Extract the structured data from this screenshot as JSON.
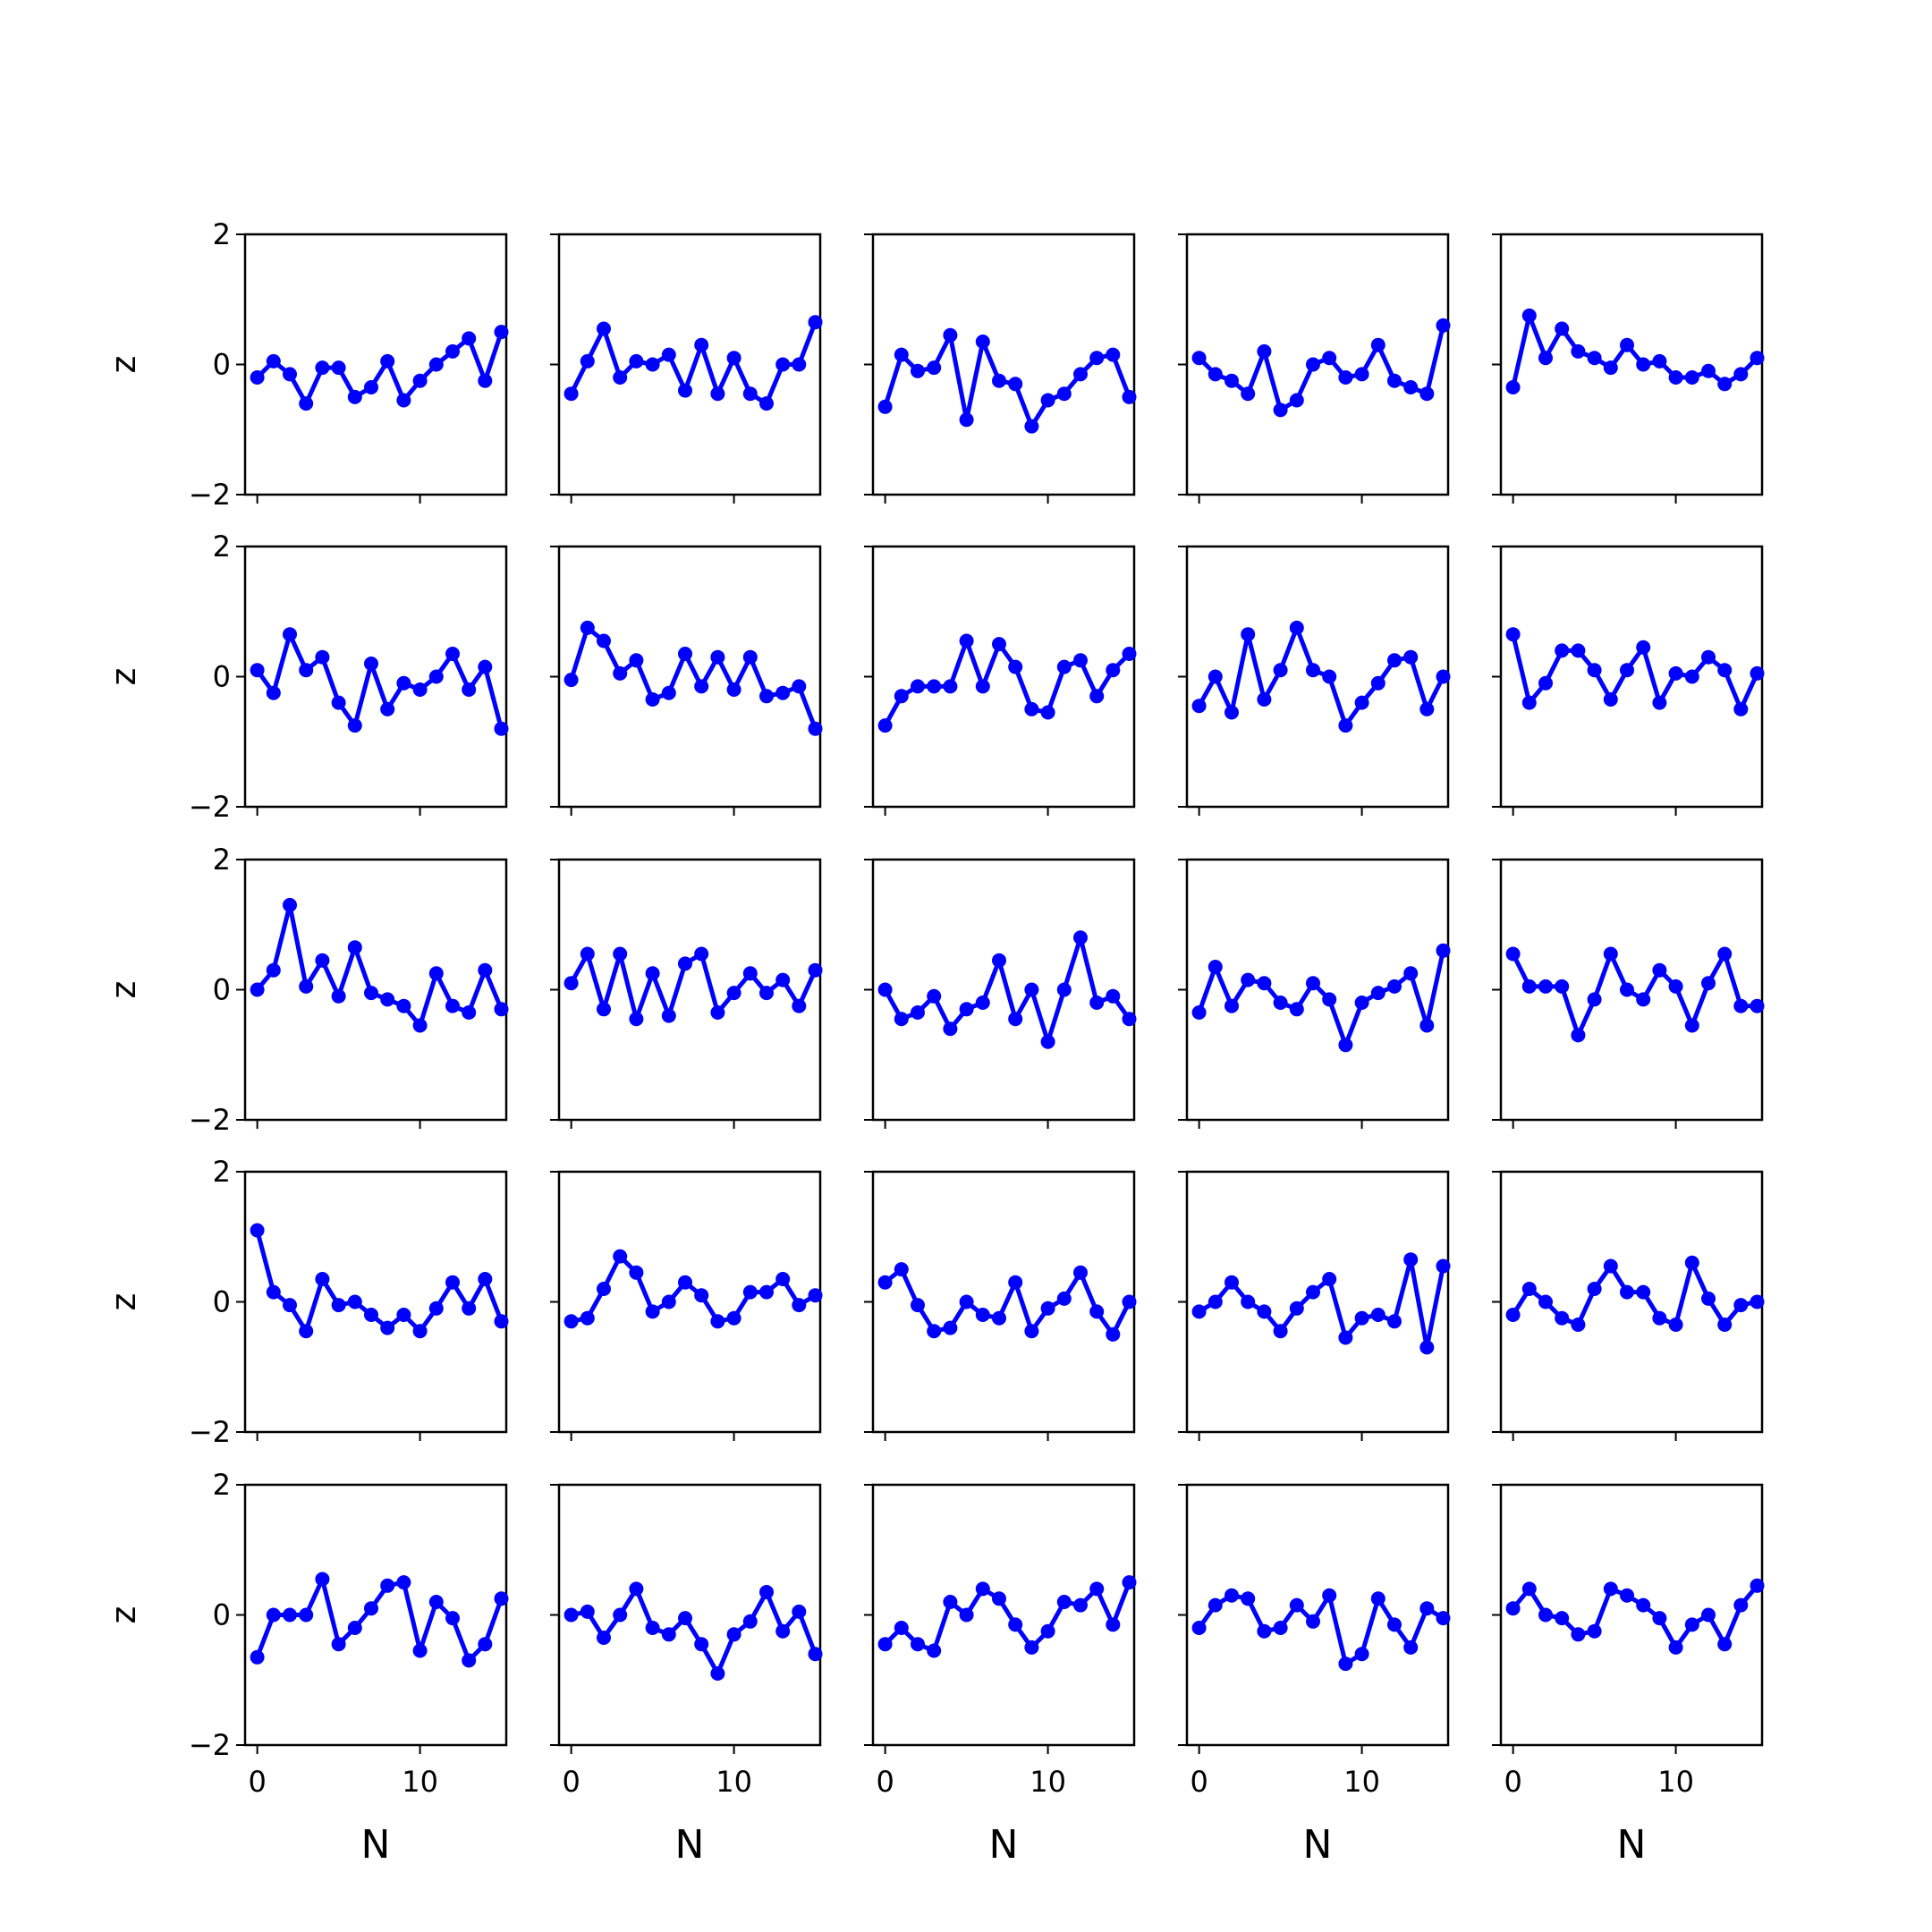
{
  "figure": {
    "rows": 5,
    "cols": 5,
    "series_color": "#0000ff"
  },
  "chart_data": {
    "type": "line",
    "layout": "5x5 grid of small multiples (shared x and y axes)",
    "xlabel": "N",
    "ylabel": "z",
    "xlim": [
      -0.75,
      15.3
    ],
    "ylim": [
      -2,
      2
    ],
    "xticks": [
      0,
      10
    ],
    "yticks": [
      -2,
      0,
      2
    ],
    "x": [
      0,
      1,
      2,
      3,
      4,
      5,
      6,
      7,
      8,
      9,
      10,
      11,
      12,
      13,
      14,
      15
    ],
    "markers": true,
    "grid": false,
    "panels": [
      {
        "row": 0,
        "col": 0,
        "values": [
          -0.2,
          0.05,
          -0.15,
          -0.6,
          -0.05,
          -0.05,
          -0.5,
          -0.35,
          0.05,
          -0.55,
          -0.25,
          0.0,
          0.2,
          0.4,
          -0.25,
          0.5
        ]
      },
      {
        "row": 0,
        "col": 1,
        "values": [
          -0.45,
          0.05,
          0.55,
          -0.2,
          0.05,
          0.0,
          0.15,
          -0.4,
          0.3,
          -0.45,
          0.1,
          -0.45,
          -0.6,
          0.0,
          0.0,
          0.65
        ]
      },
      {
        "row": 0,
        "col": 2,
        "values": [
          -0.65,
          0.15,
          -0.1,
          -0.05,
          0.45,
          -0.85,
          0.35,
          -0.25,
          -0.3,
          -0.95,
          -0.55,
          -0.45,
          -0.15,
          0.1,
          0.15,
          -0.5
        ]
      },
      {
        "row": 0,
        "col": 3,
        "values": [
          0.1,
          -0.15,
          -0.25,
          -0.45,
          0.2,
          -0.7,
          -0.55,
          0.0,
          0.1,
          -0.2,
          -0.15,
          0.3,
          -0.25,
          -0.35,
          -0.45,
          0.6
        ]
      },
      {
        "row": 0,
        "col": 4,
        "values": [
          -0.35,
          0.75,
          0.1,
          0.55,
          0.2,
          0.1,
          -0.05,
          0.3,
          0.0,
          0.05,
          -0.2,
          -0.2,
          -0.1,
          -0.3,
          -0.15,
          0.1
        ]
      },
      {
        "row": 1,
        "col": 0,
        "values": [
          0.1,
          -0.25,
          0.65,
          0.1,
          0.3,
          -0.4,
          -0.75,
          0.2,
          -0.5,
          -0.1,
          -0.2,
          0.0,
          0.35,
          -0.2,
          0.15,
          -0.8
        ]
      },
      {
        "row": 1,
        "col": 1,
        "values": [
          -0.05,
          0.75,
          0.55,
          0.05,
          0.25,
          -0.35,
          -0.25,
          0.35,
          -0.15,
          0.3,
          -0.2,
          0.3,
          -0.3,
          -0.25,
          -0.15,
          -0.8
        ]
      },
      {
        "row": 1,
        "col": 2,
        "values": [
          -0.75,
          -0.3,
          -0.15,
          -0.15,
          -0.15,
          0.55,
          -0.15,
          0.5,
          0.15,
          -0.5,
          -0.55,
          0.15,
          0.25,
          -0.3,
          0.1,
          0.35
        ]
      },
      {
        "row": 1,
        "col": 3,
        "values": [
          -0.45,
          0.0,
          -0.55,
          0.65,
          -0.35,
          0.1,
          0.75,
          0.1,
          0.0,
          -0.75,
          -0.4,
          -0.1,
          0.25,
          0.3,
          -0.5,
          0.0
        ]
      },
      {
        "row": 1,
        "col": 4,
        "values": [
          0.65,
          -0.4,
          -0.1,
          0.4,
          0.4,
          0.1,
          -0.35,
          0.1,
          0.45,
          -0.4,
          0.05,
          0.0,
          0.3,
          0.1,
          -0.5,
          0.05
        ]
      },
      {
        "row": 2,
        "col": 0,
        "values": [
          0.0,
          0.3,
          1.3,
          0.05,
          0.45,
          -0.1,
          0.65,
          -0.05,
          -0.15,
          -0.25,
          -0.55,
          0.25,
          -0.25,
          -0.35,
          0.3,
          -0.3
        ]
      },
      {
        "row": 2,
        "col": 1,
        "values": [
          0.1,
          0.55,
          -0.3,
          0.55,
          -0.45,
          0.25,
          -0.4,
          0.4,
          0.55,
          -0.35,
          -0.05,
          0.25,
          -0.05,
          0.15,
          -0.25,
          0.3
        ]
      },
      {
        "row": 2,
        "col": 2,
        "values": [
          0.0,
          -0.45,
          -0.35,
          -0.1,
          -0.6,
          -0.3,
          -0.2,
          0.45,
          -0.45,
          0.0,
          -0.8,
          0.0,
          0.8,
          -0.2,
          -0.1,
          -0.45
        ]
      },
      {
        "row": 2,
        "col": 3,
        "values": [
          -0.35,
          0.35,
          -0.25,
          0.15,
          0.1,
          -0.2,
          -0.3,
          0.1,
          -0.15,
          -0.85,
          -0.2,
          -0.05,
          0.05,
          0.25,
          -0.55,
          0.6
        ]
      },
      {
        "row": 2,
        "col": 4,
        "values": [
          0.55,
          0.05,
          0.05,
          0.05,
          -0.7,
          -0.15,
          0.55,
          0.0,
          -0.15,
          0.3,
          0.05,
          -0.55,
          0.1,
          0.55,
          -0.25,
          -0.25
        ]
      },
      {
        "row": 3,
        "col": 0,
        "values": [
          1.1,
          0.15,
          -0.05,
          -0.45,
          0.35,
          -0.05,
          0.0,
          -0.2,
          -0.4,
          -0.2,
          -0.45,
          -0.1,
          0.3,
          -0.1,
          0.35,
          -0.3
        ]
      },
      {
        "row": 3,
        "col": 1,
        "values": [
          -0.3,
          -0.25,
          0.2,
          0.7,
          0.45,
          -0.15,
          0.0,
          0.3,
          0.1,
          -0.3,
          -0.25,
          0.15,
          0.15,
          0.35,
          -0.05,
          0.1
        ]
      },
      {
        "row": 3,
        "col": 2,
        "values": [
          0.3,
          0.5,
          -0.05,
          -0.45,
          -0.4,
          0.0,
          -0.2,
          -0.25,
          0.3,
          -0.45,
          -0.1,
          0.05,
          0.45,
          -0.15,
          -0.5,
          0.0
        ]
      },
      {
        "row": 3,
        "col": 3,
        "values": [
          -0.15,
          0.0,
          0.3,
          0.0,
          -0.15,
          -0.45,
          -0.1,
          0.15,
          0.35,
          -0.55,
          -0.25,
          -0.2,
          -0.3,
          0.65,
          -0.7,
          0.55
        ]
      },
      {
        "row": 3,
        "col": 4,
        "values": [
          -0.2,
          0.2,
          0.0,
          -0.25,
          -0.35,
          0.2,
          0.55,
          0.15,
          0.15,
          -0.25,
          -0.35,
          0.6,
          0.05,
          -0.35,
          -0.05,
          0.0
        ]
      },
      {
        "row": 4,
        "col": 0,
        "values": [
          -0.65,
          0.0,
          0.0,
          0.0,
          0.55,
          -0.45,
          -0.2,
          0.1,
          0.45,
          0.5,
          -0.55,
          0.2,
          -0.05,
          -0.7,
          -0.45,
          0.25
        ]
      },
      {
        "row": 4,
        "col": 1,
        "values": [
          0.0,
          0.05,
          -0.35,
          0.0,
          0.4,
          -0.2,
          -0.3,
          -0.05,
          -0.45,
          -0.9,
          -0.3,
          -0.1,
          0.35,
          -0.25,
          0.05,
          -0.6
        ]
      },
      {
        "row": 4,
        "col": 2,
        "values": [
          -0.45,
          -0.2,
          -0.45,
          -0.55,
          0.2,
          0.0,
          0.4,
          0.25,
          -0.15,
          -0.5,
          -0.25,
          0.2,
          0.15,
          0.4,
          -0.15,
          0.5
        ]
      },
      {
        "row": 4,
        "col": 3,
        "values": [
          -0.2,
          0.15,
          0.3,
          0.25,
          -0.25,
          -0.2,
          0.15,
          -0.1,
          0.3,
          -0.75,
          -0.6,
          0.25,
          -0.15,
          -0.5,
          0.1,
          -0.05
        ]
      },
      {
        "row": 4,
        "col": 4,
        "values": [
          0.1,
          0.4,
          0.0,
          -0.05,
          -0.3,
          -0.25,
          0.4,
          0.3,
          0.15,
          -0.05,
          -0.5,
          -0.15,
          0.0,
          -0.45,
          0.15,
          0.45
        ]
      }
    ]
  }
}
